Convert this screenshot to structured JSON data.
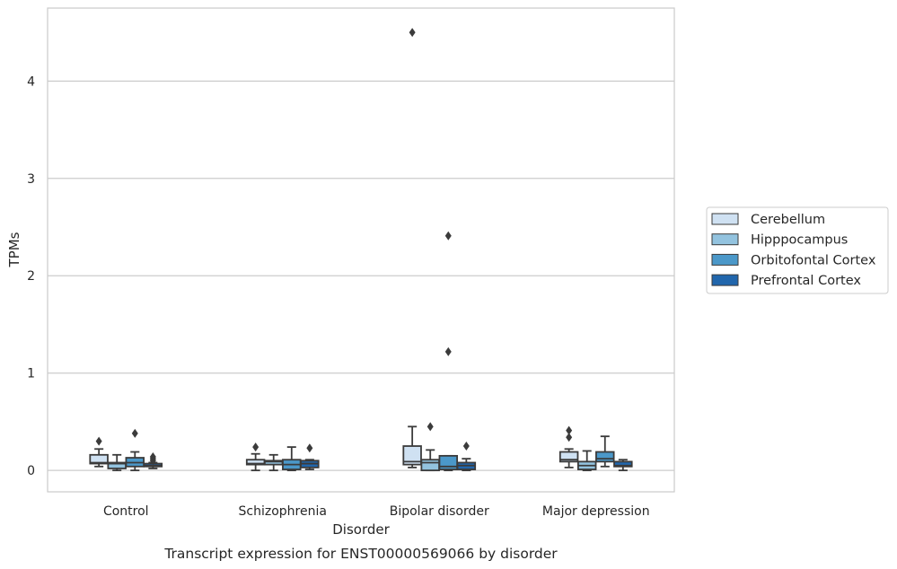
{
  "chart_data": {
    "type": "box",
    "caption": "Transcript expression for ENST00000569066 by disorder",
    "xlabel": "Disorder",
    "ylabel": "TPMs",
    "ylim": [
      -0.22,
      4.75
    ],
    "yticks": [
      0,
      1,
      2,
      3,
      4
    ],
    "grid": "horizontal",
    "legend_position": "right-center",
    "categories": [
      "Control",
      "Schizophrenia",
      "Bipolar disorder",
      "Major depression"
    ],
    "series": [
      {
        "name": "Cerebellum",
        "color": "#cfe1f2",
        "boxes": [
          {
            "whislo": 0.04,
            "q1": 0.07,
            "med": 0.08,
            "q3": 0.16,
            "whishi": 0.22,
            "fliers": [
              0.3
            ]
          },
          {
            "whislo": 0.0,
            "q1": 0.06,
            "med": 0.07,
            "q3": 0.11,
            "whishi": 0.17,
            "fliers": [
              0.24
            ]
          },
          {
            "whislo": 0.03,
            "q1": 0.06,
            "med": 0.09,
            "q3": 0.25,
            "whishi": 0.45,
            "fliers": [
              4.5
            ]
          },
          {
            "whislo": 0.03,
            "q1": 0.09,
            "med": 0.11,
            "q3": 0.19,
            "whishi": 0.22,
            "fliers": [
              0.34,
              0.41
            ]
          }
        ]
      },
      {
        "name": "Hipppocampus",
        "color": "#93c3df",
        "boxes": [
          {
            "whislo": 0.0,
            "q1": 0.02,
            "med": 0.07,
            "q3": 0.08,
            "whishi": 0.16,
            "fliers": []
          },
          {
            "whislo": 0.0,
            "q1": 0.06,
            "med": 0.09,
            "q3": 0.1,
            "whishi": 0.16,
            "fliers": []
          },
          {
            "whislo": 0.0,
            "q1": 0.0,
            "med": 0.08,
            "q3": 0.11,
            "whishi": 0.21,
            "fliers": [
              0.45
            ]
          },
          {
            "whislo": 0.0,
            "q1": 0.01,
            "med": 0.05,
            "q3": 0.09,
            "whishi": 0.2,
            "fliers": []
          }
        ]
      },
      {
        "name": "Orbitofontal Cortex",
        "color": "#4b98c9",
        "boxes": [
          {
            "whislo": 0.0,
            "q1": 0.04,
            "med": 0.08,
            "q3": 0.13,
            "whishi": 0.19,
            "fliers": [
              0.38
            ]
          },
          {
            "whislo": 0.0,
            "q1": 0.01,
            "med": 0.06,
            "q3": 0.11,
            "whishi": 0.24,
            "fliers": []
          },
          {
            "whislo": 0.0,
            "q1": 0.01,
            "med": 0.04,
            "q3": 0.15,
            "whishi": 0.15,
            "fliers": [
              1.22,
              2.41
            ]
          },
          {
            "whislo": 0.04,
            "q1": 0.09,
            "med": 0.12,
            "q3": 0.19,
            "whishi": 0.35,
            "fliers": []
          }
        ]
      },
      {
        "name": "Prefrontal Cortex",
        "color": "#2166ac",
        "boxes": [
          {
            "whislo": 0.02,
            "q1": 0.04,
            "med": 0.05,
            "q3": 0.07,
            "whishi": 0.08,
            "fliers": [
              0.1,
              0.12,
              0.14
            ]
          },
          {
            "whislo": 0.01,
            "q1": 0.03,
            "med": 0.07,
            "q3": 0.1,
            "whishi": 0.11,
            "fliers": [
              0.23
            ]
          },
          {
            "whislo": 0.0,
            "q1": 0.01,
            "med": 0.05,
            "q3": 0.08,
            "whishi": 0.12,
            "fliers": [
              0.25
            ]
          },
          {
            "whislo": 0.0,
            "q1": 0.04,
            "med": 0.05,
            "q3": 0.09,
            "whishi": 0.11,
            "fliers": []
          }
        ]
      }
    ]
  }
}
